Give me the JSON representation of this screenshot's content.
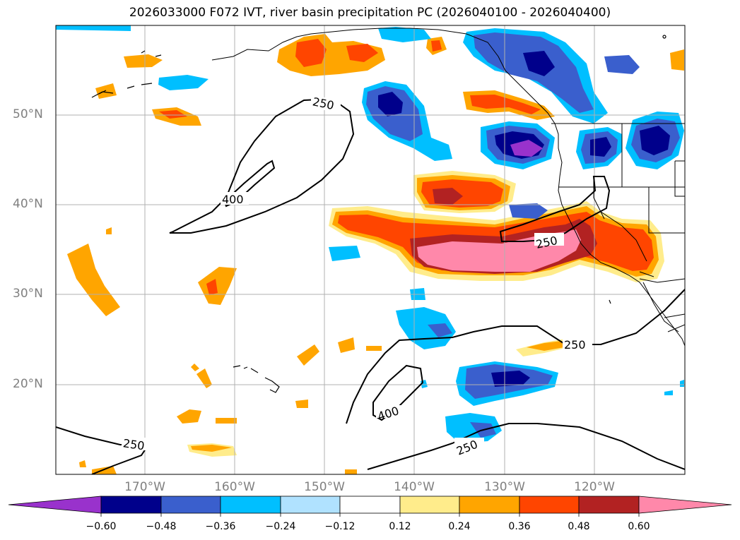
{
  "title": "2026033000 F072 IVT, river basin precipitation PC (2026040100 - 2026040400)",
  "map": {
    "lon_range": [
      -180,
      -110
    ],
    "lat_range": [
      10,
      60
    ],
    "lat_ticks": [
      "50°N",
      "40°N",
      "30°N",
      "20°N"
    ],
    "lon_ticks": [
      "170°W",
      "160°W",
      "150°W",
      "140°W",
      "130°W",
      "120°W"
    ],
    "contour_labels": [
      "250",
      "400",
      "250",
      "250",
      "400",
      "250",
      "250"
    ]
  },
  "colorbar": {
    "ticks": [
      "−0.60",
      "−0.48",
      "−0.36",
      "−0.24",
      "−0.12",
      "0.12",
      "0.24",
      "0.36",
      "0.48",
      "0.60"
    ],
    "colors": [
      "#9932cc",
      "#00008b",
      "#3a5fcd",
      "#00bfff",
      "#b0e2ff",
      "#ffffff",
      "#ffec8b",
      "#ffa500",
      "#ff4500",
      "#b22222",
      "#ff88aa"
    ]
  }
}
